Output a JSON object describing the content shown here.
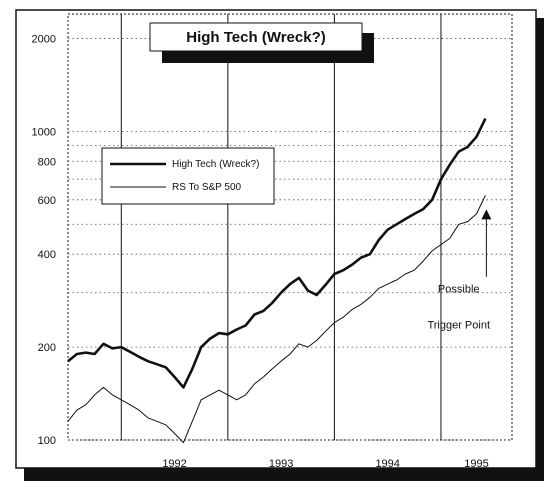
{
  "chart_data": {
    "type": "line",
    "title": "High Tech (Wreck?)",
    "xlabel": "",
    "ylabel": "",
    "y_scale": "log",
    "ylim": [
      100,
      2400
    ],
    "xlim": [
      "1991-07",
      "1995-09"
    ],
    "y_ticks": [
      100,
      200,
      400,
      600,
      800,
      1000,
      2000
    ],
    "x_ticks": [
      {
        "label": "1992",
        "x": "1992-07"
      },
      {
        "label": "1993",
        "x": "1993-07"
      },
      {
        "label": "1994",
        "x": "1994-07"
      },
      {
        "label": "1995",
        "x": "1995-05"
      }
    ],
    "grid": true,
    "legend_placement": "upper-left",
    "annotations": [
      {
        "text": "Possible",
        "x": "1995-03",
        "y": 300
      },
      {
        "text": "Trigger Point",
        "x": "1995-03",
        "y": 230
      }
    ],
    "series": [
      {
        "name": "High Tech (Wreck?)",
        "style": "thick",
        "points": [
          [
            "1991-07",
            180
          ],
          [
            "1991-08",
            190
          ],
          [
            "1991-09",
            192
          ],
          [
            "1991-10",
            190
          ],
          [
            "1991-11",
            205
          ],
          [
            "1991-12",
            198
          ],
          [
            "1992-01",
            200
          ],
          [
            "1992-02",
            193
          ],
          [
            "1992-03",
            186
          ],
          [
            "1992-04",
            180
          ],
          [
            "1992-05",
            176
          ],
          [
            "1992-06",
            172
          ],
          [
            "1992-07",
            160
          ],
          [
            "1992-08",
            148
          ],
          [
            "1992-09",
            170
          ],
          [
            "1992-10",
            200
          ],
          [
            "1992-11",
            213
          ],
          [
            "1992-12",
            222
          ],
          [
            "1993-01",
            220
          ],
          [
            "1993-02",
            228
          ],
          [
            "1993-03",
            235
          ],
          [
            "1993-04",
            255
          ],
          [
            "1993-05",
            262
          ],
          [
            "1993-06",
            278
          ],
          [
            "1993-07",
            300
          ],
          [
            "1993-08",
            320
          ],
          [
            "1993-09",
            335
          ],
          [
            "1993-10",
            305
          ],
          [
            "1993-11",
            295
          ],
          [
            "1993-12",
            318
          ],
          [
            "1994-01",
            345
          ],
          [
            "1994-02",
            355
          ],
          [
            "1994-03",
            370
          ],
          [
            "1994-04",
            390
          ],
          [
            "1994-05",
            400
          ],
          [
            "1994-06",
            445
          ],
          [
            "1994-07",
            480
          ],
          [
            "1994-08",
            500
          ],
          [
            "1994-09",
            520
          ],
          [
            "1994-10",
            540
          ],
          [
            "1994-11",
            560
          ],
          [
            "1994-12",
            600
          ],
          [
            "1995-01",
            700
          ],
          [
            "1995-02",
            780
          ],
          [
            "1995-03",
            860
          ],
          [
            "1995-04",
            890
          ],
          [
            "1995-05",
            960
          ],
          [
            "1995-06",
            1100
          ]
        ]
      },
      {
        "name": "RS To S&P 500",
        "style": "thin",
        "points": [
          [
            "1991-07",
            115
          ],
          [
            "1991-08",
            125
          ],
          [
            "1991-09",
            130
          ],
          [
            "1991-10",
            140
          ],
          [
            "1991-11",
            148
          ],
          [
            "1991-12",
            140
          ],
          [
            "1992-01",
            135
          ],
          [
            "1992-02",
            130
          ],
          [
            "1992-03",
            125
          ],
          [
            "1992-04",
            118
          ],
          [
            "1992-05",
            115
          ],
          [
            "1992-06",
            112
          ],
          [
            "1992-07",
            105
          ],
          [
            "1992-08",
            98
          ],
          [
            "1992-09",
            115
          ],
          [
            "1992-10",
            135
          ],
          [
            "1992-11",
            140
          ],
          [
            "1992-12",
            145
          ],
          [
            "1993-01",
            140
          ],
          [
            "1993-02",
            135
          ],
          [
            "1993-03",
            140
          ],
          [
            "1993-04",
            152
          ],
          [
            "1993-05",
            160
          ],
          [
            "1993-06",
            170
          ],
          [
            "1993-07",
            180
          ],
          [
            "1993-08",
            190
          ],
          [
            "1993-09",
            205
          ],
          [
            "1993-10",
            200
          ],
          [
            "1993-11",
            210
          ],
          [
            "1993-12",
            225
          ],
          [
            "1994-01",
            240
          ],
          [
            "1994-02",
            250
          ],
          [
            "1994-03",
            265
          ],
          [
            "1994-04",
            275
          ],
          [
            "1994-05",
            290
          ],
          [
            "1994-06",
            310
          ],
          [
            "1994-07",
            320
          ],
          [
            "1994-08",
            330
          ],
          [
            "1994-09",
            345
          ],
          [
            "1994-10",
            355
          ],
          [
            "1994-11",
            380
          ],
          [
            "1994-12",
            410
          ],
          [
            "1995-01",
            430
          ],
          [
            "1995-02",
            450
          ],
          [
            "1995-03",
            500
          ],
          [
            "1995-04",
            510
          ],
          [
            "1995-05",
            540
          ],
          [
            "1995-06",
            620
          ]
        ]
      }
    ]
  }
}
